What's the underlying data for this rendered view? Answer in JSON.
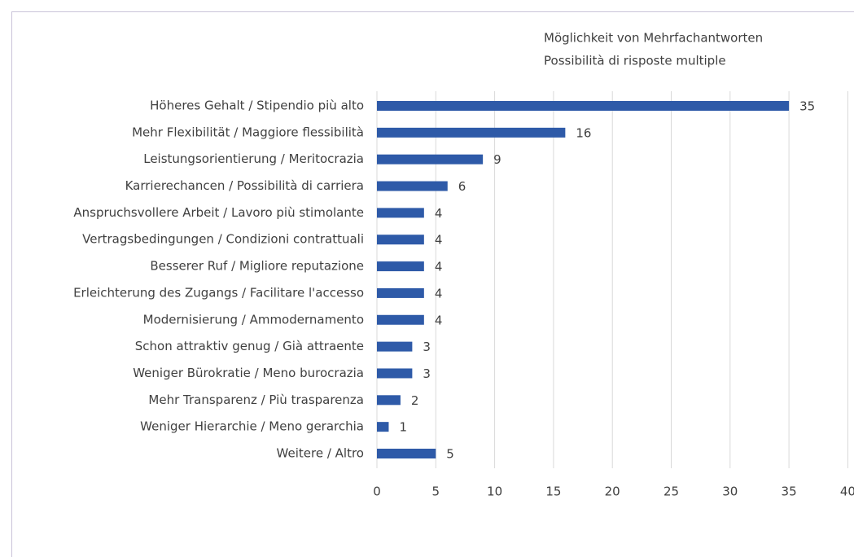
{
  "chart_data": {
    "type": "barh",
    "annotations": [
      "Möglichkeit von Mehrfachantworten",
      "Possibilità di risposte multiple"
    ],
    "categories": [
      "Höheres Gehalt / Stipendio più alto",
      "Mehr Flexibilität / Maggiore flessibilità",
      "Leistungsorientierung / Meritocrazia",
      "Karrierechancen / Possibilità di carriera",
      "Anspruchsvollere Arbeit / Lavoro più stimolante",
      "Vertragsbedingungen / Condizioni contrattuali",
      "Besserer Ruf / Migliore reputazione",
      "Erleichterung des Zugangs / Facilitare l'accesso",
      "Modernisierung / Ammodernamento",
      "Schon attraktiv genug / Già attraente",
      "Weniger Bürokratie / Meno burocrazia",
      "Mehr Transparenz / Più trasparenza",
      "Weniger Hierarchie / Meno gerarchia",
      "Weitere / Altro"
    ],
    "values": [
      35,
      16,
      9,
      6,
      4,
      4,
      4,
      4,
      4,
      3,
      3,
      2,
      1,
      5
    ],
    "color": "#2e5aa8",
    "xlim": [
      0,
      40
    ],
    "xticks": [
      0,
      5,
      10,
      15,
      20,
      25,
      30,
      35,
      40
    ],
    "grid": true
  }
}
